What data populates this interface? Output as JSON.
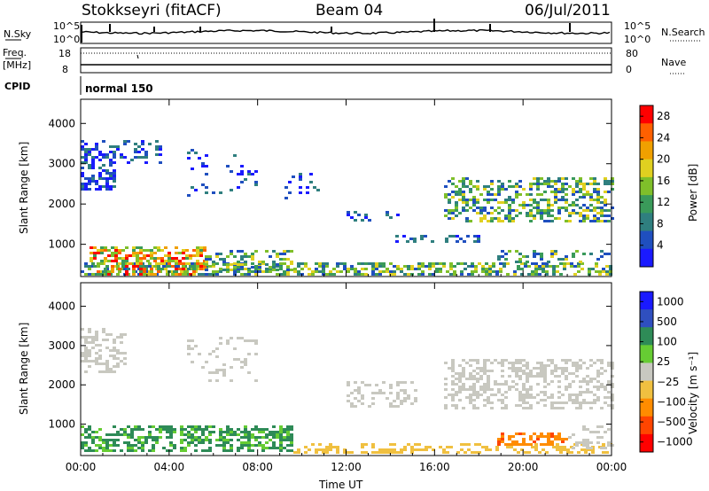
{
  "header": {
    "station": "Stokkseyri (fitACF)",
    "beam": "Beam 04",
    "date": "06/Jul/2011"
  },
  "status_panels": {
    "nsky_label": "N.Sky",
    "nsearch_label": "N.Search",
    "nsky_ticks": [
      "10^5",
      "10^0"
    ],
    "nsearch_ticks": [
      "10^5",
      "10^0"
    ],
    "freq_label_line1": "Freq.",
    "freq_label_line2": "[MHz]",
    "freq_ticks": [
      "18",
      "8"
    ],
    "nave_label": "Nave",
    "nave_ticks": [
      "80",
      "0"
    ],
    "cpid_label": "CPID",
    "cpid_value": "normal 150"
  },
  "colors": {
    "power": [
      "#1a1aff",
      "#1f4fbf",
      "#2f7f7f",
      "#3a9a5a",
      "#7fbf2a",
      "#e0d020",
      "#f0a000",
      "#ff6000",
      "#ff0000"
    ],
    "velocity": [
      "#1a1aff",
      "#2f4fbf",
      "#2e8b57",
      "#66cc33",
      "#c8c8c0",
      "#f0c040",
      "#ff8c00",
      "#ff4500",
      "#ff0000"
    ]
  },
  "chart_data": [
    {
      "type": "heatmap",
      "quantity": "power",
      "ylabel": "Slant Range [km]",
      "y_ticks": [
        "1000",
        "2000",
        "3000",
        "4000"
      ],
      "ylim": [
        200,
        4600
      ],
      "x_ticks": [
        "00:00",
        "04:00",
        "08:00",
        "12:00",
        "16:00",
        "20:00",
        "00:00"
      ],
      "xlim_hours": [
        0,
        24
      ],
      "colorbar_label": "Power [dB]",
      "colorbar_ticks": [
        "4",
        "8",
        "12",
        "16",
        "20",
        "24",
        "28"
      ],
      "colorbar_range": [
        0,
        30
      ]
    },
    {
      "type": "heatmap",
      "quantity": "velocity",
      "ylabel": "Slant Range [km]",
      "y_ticks": [
        "1000",
        "2000",
        "3000",
        "4000"
      ],
      "ylim": [
        200,
        4600
      ],
      "x_ticks": [
        "00:00",
        "04:00",
        "08:00",
        "12:00",
        "16:00",
        "20:00",
        "00:00"
      ],
      "xlim_hours": [
        0,
        24
      ],
      "xlabel": "Time UT",
      "colorbar_label": "Velocity [m s⁻¹]",
      "colorbar_ticks": [
        "1000",
        "500",
        "100",
        "25",
        "−25",
        "−100",
        "−500",
        "−1000"
      ]
    }
  ]
}
